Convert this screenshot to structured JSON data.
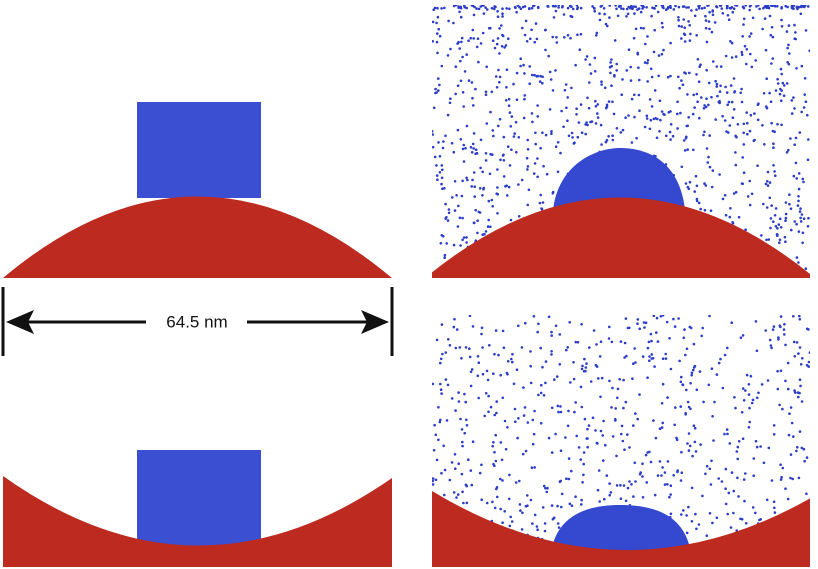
{
  "annotation": {
    "label": "64.5 nm"
  }
}
